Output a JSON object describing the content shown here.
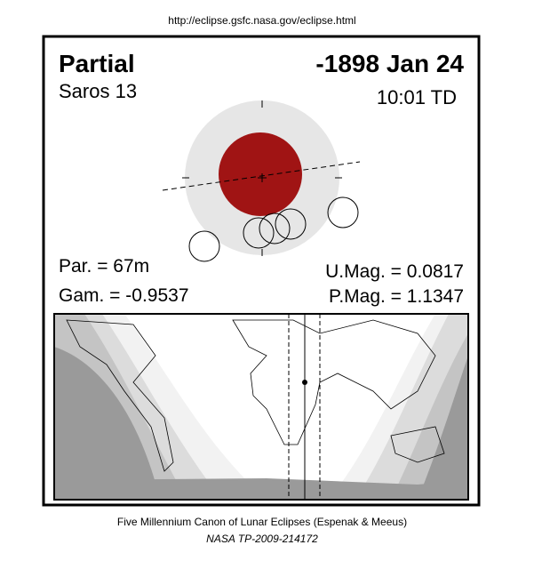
{
  "header": {
    "url": "http://eclipse.gsfc.nasa.gov/eclipse.html"
  },
  "eclipse": {
    "type": "Partial",
    "date": "-1898 Jan 24",
    "saros": "Saros  13",
    "time": "10:01 TD",
    "par": "Par. =  67m",
    "gam": "Gam. = -0.9537",
    "umag": "U.Mag. = 0.0817",
    "pmag": "P.Mag. = 1.1347"
  },
  "footer": {
    "line1": "Five Millennium Canon of Lunar Eclipses (Espenak & Meeus)",
    "line2": "NASA TP-2009-214172"
  }
}
